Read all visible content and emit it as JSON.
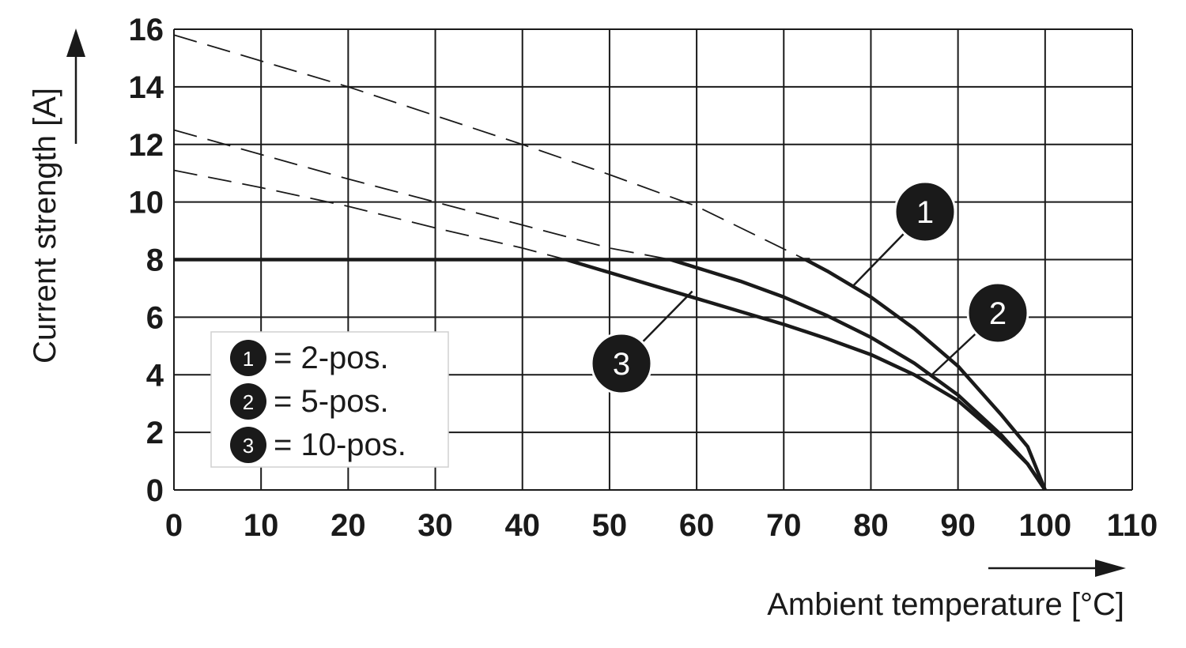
{
  "chart_data": {
    "type": "line",
    "xlabel": "Ambient temperature [°C]",
    "ylabel": "Current strength [A]",
    "xlim": [
      0,
      110
    ],
    "ylim": [
      0,
      16
    ],
    "xticks": [
      0,
      10,
      20,
      30,
      40,
      50,
      60,
      70,
      80,
      90,
      100,
      110
    ],
    "yticks": [
      0,
      2,
      4,
      6,
      8,
      10,
      12,
      14,
      16
    ],
    "grid": true,
    "legend_position": "bottom-left",
    "legend": [
      {
        "id": "1",
        "text": "= 2-pos."
      },
      {
        "id": "2",
        "text": "= 5-pos."
      },
      {
        "id": "3",
        "text": "= 10-pos."
      }
    ],
    "limit_line": {
      "y": 8,
      "x": [
        0,
        73
      ]
    },
    "series": [
      {
        "id": "1",
        "name": "2-pos.",
        "x": [
          0,
          10,
          20,
          30,
          40,
          50,
          60,
          72.5,
          75,
          80,
          85,
          90,
          95,
          98,
          100
        ],
        "y": [
          15.8,
          14.9,
          14.0,
          13.0,
          12.0,
          10.95,
          9.85,
          8.0,
          7.6,
          6.7,
          5.6,
          4.3,
          2.6,
          1.5,
          0
        ],
        "dashed_until_x": 72.5
      },
      {
        "id": "2",
        "name": "5-pos.",
        "x": [
          0,
          10,
          20,
          30,
          40,
          50,
          57,
          65,
          70,
          75,
          80,
          85,
          90,
          95,
          98,
          100
        ],
        "y": [
          12.5,
          11.65,
          10.8,
          10.0,
          9.2,
          8.4,
          8.0,
          7.25,
          6.7,
          6.05,
          5.3,
          4.4,
          3.3,
          1.9,
          0.9,
          0
        ],
        "dashed_until_x": 57
      },
      {
        "id": "3",
        "name": "10-pos.",
        "x": [
          0,
          10,
          20,
          30,
          40,
          45,
          50,
          55,
          60,
          65,
          70,
          75,
          80,
          85,
          90,
          95,
          98,
          100
        ],
        "y": [
          11.1,
          10.5,
          9.85,
          9.1,
          8.4,
          8.0,
          7.55,
          7.1,
          6.65,
          6.2,
          5.75,
          5.25,
          4.7,
          4.0,
          3.1,
          1.8,
          0.9,
          0
        ],
        "dashed_until_x": 45
      }
    ],
    "annotations": [
      {
        "id": "1",
        "text": "1"
      },
      {
        "id": "2",
        "text": "2"
      },
      {
        "id": "3",
        "text": "3"
      }
    ]
  }
}
